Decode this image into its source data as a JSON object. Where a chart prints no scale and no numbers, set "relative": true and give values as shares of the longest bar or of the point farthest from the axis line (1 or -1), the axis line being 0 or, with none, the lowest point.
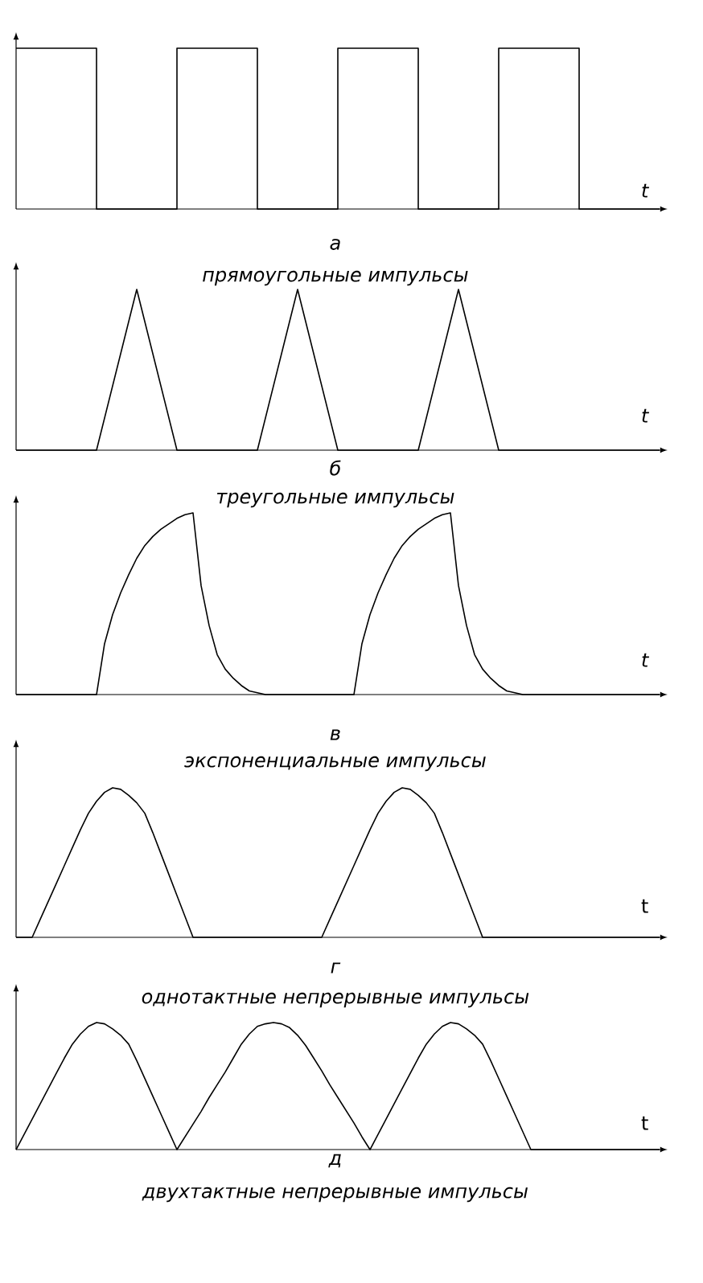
{
  "chart_data": [
    {
      "type": "step",
      "relative": true,
      "color": "#000000",
      "xlabel": "t",
      "annotations": [
        "а",
        "прямоугольные импульсы"
      ],
      "categories": [
        null,
        null,
        null,
        null,
        null,
        null,
        null,
        null,
        null
      ],
      "values": [
        1,
        0,
        1,
        0,
        1,
        0,
        1,
        0,
        0
      ]
    },
    {
      "type": "line",
      "relative": true,
      "color": "#000000",
      "xlabel": "t",
      "annotations": [
        "б",
        "треугольные импульсы"
      ],
      "categories": [
        null,
        null,
        null,
        null,
        null,
        null,
        null,
        null,
        null,
        null,
        null,
        null,
        null,
        null,
        null,
        null,
        null
      ],
      "values": [
        0,
        0,
        0,
        1,
        0,
        0,
        0,
        1,
        0,
        0,
        0,
        1,
        0,
        0,
        0,
        0,
        0
      ]
    },
    {
      "type": "line",
      "relative": true,
      "color": "#000000",
      "xlabel": "t",
      "annotations": [
        "в",
        "экспоненциальные импульсы"
      ],
      "categories": [
        null,
        null,
        null,
        null,
        null,
        null,
        null,
        null,
        null,
        null,
        null,
        null,
        null,
        null,
        null,
        null,
        null,
        null,
        null,
        null,
        null,
        null,
        null,
        null,
        null,
        null,
        null,
        null,
        null,
        null,
        null,
        null,
        null,
        null,
        null,
        null,
        null,
        null,
        null,
        null,
        null,
        null,
        null,
        null,
        null,
        null,
        null,
        null,
        null,
        null,
        null,
        null,
        null,
        null,
        null,
        null,
        null,
        null,
        null,
        null,
        null,
        null,
        null,
        null,
        null,
        null,
        null,
        null,
        null,
        null,
        null,
        null,
        null,
        null,
        null,
        null,
        null,
        null,
        null,
        null,
        null
      ],
      "values": [
        0,
        0,
        0,
        0,
        0,
        0,
        0,
        0,
        0,
        0,
        0,
        0.28,
        0.44,
        0.56,
        0.66,
        0.75,
        0.82,
        0.87,
        0.91,
        0.94,
        0.97,
        0.99,
        1,
        0.6,
        0.38,
        0.22,
        0.14,
        0.09,
        0.05,
        0.02,
        0.01,
        0,
        0,
        0,
        0,
        0,
        0,
        0,
        0,
        0,
        0,
        0,
        0,
        0.28,
        0.44,
        0.56,
        0.66,
        0.75,
        0.82,
        0.87,
        0.91,
        0.94,
        0.97,
        0.99,
        1,
        0.6,
        0.38,
        0.22,
        0.14,
        0.09,
        0.05,
        0.02,
        0.01,
        0,
        0,
        0,
        0,
        0,
        0,
        0,
        0,
        0,
        0,
        0,
        0,
        0,
        0,
        0,
        0,
        0,
        0
      ]
    },
    {
      "type": "line",
      "relative": true,
      "color": "#000000",
      "xlabel": "t",
      "annotations": [
        "г",
        "однотактные непрерывные импульсы"
      ],
      "categories": [
        null,
        null,
        null,
        null,
        null,
        null,
        null,
        null,
        null,
        null,
        null,
        null,
        null,
        null,
        null,
        null,
        null,
        null,
        null,
        null,
        null,
        null,
        null,
        null,
        null,
        null,
        null,
        null,
        null,
        null,
        null,
        null,
        null,
        null,
        null,
        null,
        null,
        null,
        null,
        null,
        null,
        null,
        null,
        null,
        null,
        null,
        null,
        null,
        null,
        null,
        null,
        null,
        null,
        null,
        null,
        null,
        null,
        null,
        null,
        null,
        null,
        null,
        null,
        null,
        null,
        null,
        null,
        null,
        null,
        null,
        null,
        null,
        null,
        null,
        null,
        null,
        null,
        null,
        null,
        null,
        null
      ],
      "values": [
        0,
        0,
        0,
        0.12,
        0.24,
        0.36,
        0.48,
        0.6,
        0.72,
        0.83,
        0.91,
        0.97,
        1,
        0.99,
        0.95,
        0.9,
        0.83,
        0.7,
        0.56,
        0.42,
        0.28,
        0.14,
        0,
        0,
        0,
        0,
        0,
        0,
        0,
        0,
        0,
        0,
        0,
        0,
        0,
        0,
        0,
        0,
        0,
        0.12,
        0.24,
        0.36,
        0.48,
        0.6,
        0.72,
        0.83,
        0.91,
        0.97,
        1,
        0.99,
        0.95,
        0.9,
        0.83,
        0.7,
        0.56,
        0.42,
        0.28,
        0.14,
        0,
        0,
        0,
        0,
        0,
        0,
        0,
        0,
        0,
        0,
        0,
        0,
        0,
        0,
        0,
        0,
        0,
        0,
        0,
        0,
        0,
        0,
        0
      ]
    },
    {
      "type": "line",
      "relative": true,
      "color": "#000000",
      "xlabel": "t",
      "annotations": [
        "д",
        "двухтактные непрерывные импульсы"
      ],
      "categories": [
        null,
        null,
        null,
        null,
        null,
        null,
        null,
        null,
        null,
        null,
        null,
        null,
        null,
        null,
        null,
        null,
        null,
        null,
        null,
        null,
        null,
        null,
        null,
        null,
        null,
        null,
        null,
        null,
        null,
        null,
        null,
        null,
        null,
        null,
        null,
        null,
        null,
        null,
        null,
        null,
        null,
        null,
        null,
        null,
        null,
        null,
        null,
        null,
        null,
        null,
        null,
        null,
        null,
        null,
        null,
        null,
        null,
        null,
        null,
        null,
        null,
        null,
        null,
        null,
        null,
        null,
        null,
        null,
        null,
        null,
        null,
        null,
        null,
        null,
        null,
        null,
        null,
        null,
        null,
        null,
        null
      ],
      "values": [
        0,
        0.12,
        0.24,
        0.36,
        0.48,
        0.6,
        0.72,
        0.83,
        0.91,
        0.97,
        1,
        0.99,
        0.95,
        0.9,
        0.83,
        0.7,
        0.56,
        0.42,
        0.28,
        0.14,
        0,
        0.1,
        0.2,
        0.3,
        0.41,
        0.51,
        0.61,
        0.72,
        0.83,
        0.91,
        0.97,
        0.99,
        1,
        0.99,
        0.96,
        0.9,
        0.82,
        0.72,
        0.62,
        0.51,
        0.41,
        0.31,
        0.21,
        0.1,
        0,
        0.12,
        0.24,
        0.36,
        0.48,
        0.6,
        0.72,
        0.83,
        0.91,
        0.97,
        1,
        0.99,
        0.95,
        0.9,
        0.83,
        0.7,
        0.56,
        0.42,
        0.28,
        0.14,
        0,
        0,
        0,
        0,
        0,
        0,
        0,
        0,
        0,
        0,
        0,
        0,
        0,
        0,
        0,
        0,
        0
      ]
    }
  ]
}
